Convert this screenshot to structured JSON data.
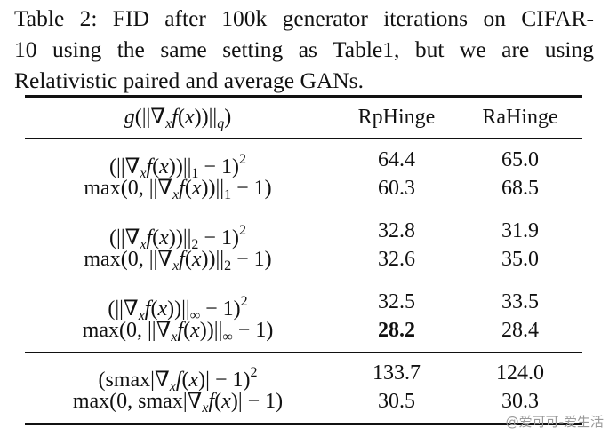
{
  "caption_lines": [
    "Table 2: FID after 100k generator iterations on CIFAR-",
    "10 using the same setting as Table1, but we are using",
    "Relativistic paired and average GANs."
  ],
  "table": {
    "header": {
      "label": [
        {
          "text": "g",
          "style": "i"
        },
        {
          "text": "(||∇",
          "style": "r"
        },
        {
          "text": "x",
          "style": "b"
        },
        {
          "text": "f",
          "style": "i"
        },
        {
          "text": "(",
          "style": "r"
        },
        {
          "text": "x",
          "style": "i"
        },
        {
          "text": "))||",
          "style": "r"
        },
        {
          "text": "q",
          "style": "b"
        },
        {
          "text": ")",
          "style": "r"
        }
      ],
      "columns": [
        "RpHinge",
        "RaHinge"
      ]
    },
    "groups": [
      [
        {
          "label": [
            {
              "text": "(||∇",
              "style": "r"
            },
            {
              "text": "x",
              "style": "b"
            },
            {
              "text": "f",
              "style": "i"
            },
            {
              "text": "(",
              "style": "r"
            },
            {
              "text": "x",
              "style": "i"
            },
            {
              "text": "))||",
              "style": "r"
            },
            {
              "text": "1",
              "style": "br"
            },
            {
              "text": " − 1)",
              "style": "r"
            },
            {
              "text": "2",
              "style": "p"
            }
          ],
          "values": [
            "64.4",
            "65.0"
          ]
        },
        {
          "label": [
            {
              "text": "max(0, ||∇",
              "style": "r"
            },
            {
              "text": "x",
              "style": "b"
            },
            {
              "text": "f",
              "style": "i"
            },
            {
              "text": "(",
              "style": "r"
            },
            {
              "text": "x",
              "style": "i"
            },
            {
              "text": "))||",
              "style": "r"
            },
            {
              "text": "1",
              "style": "br"
            },
            {
              "text": " − 1)",
              "style": "r"
            }
          ],
          "values": [
            "60.3",
            "68.5"
          ]
        }
      ],
      [
        {
          "label": [
            {
              "text": "(||∇",
              "style": "r"
            },
            {
              "text": "x",
              "style": "b"
            },
            {
              "text": "f",
              "style": "i"
            },
            {
              "text": "(",
              "style": "r"
            },
            {
              "text": "x",
              "style": "i"
            },
            {
              "text": "))||",
              "style": "r"
            },
            {
              "text": "2",
              "style": "br"
            },
            {
              "text": " − 1)",
              "style": "r"
            },
            {
              "text": "2",
              "style": "p"
            }
          ],
          "values": [
            "32.8",
            "31.9"
          ]
        },
        {
          "label": [
            {
              "text": "max(0, ||∇",
              "style": "r"
            },
            {
              "text": "x",
              "style": "b"
            },
            {
              "text": "f",
              "style": "i"
            },
            {
              "text": "(",
              "style": "r"
            },
            {
              "text": "x",
              "style": "i"
            },
            {
              "text": "))||",
              "style": "r"
            },
            {
              "text": "2",
              "style": "br"
            },
            {
              "text": " − 1)",
              "style": "r"
            }
          ],
          "values": [
            "32.6",
            "35.0"
          ]
        }
      ],
      [
        {
          "label": [
            {
              "text": "(||∇",
              "style": "r"
            },
            {
              "text": "x",
              "style": "b"
            },
            {
              "text": "f",
              "style": "i"
            },
            {
              "text": "(",
              "style": "r"
            },
            {
              "text": "x",
              "style": "i"
            },
            {
              "text": "))||",
              "style": "r"
            },
            {
              "text": "∞",
              "style": "br"
            },
            {
              "text": " − 1)",
              "style": "r"
            },
            {
              "text": "2",
              "style": "p"
            }
          ],
          "values": [
            "32.5",
            "33.5"
          ]
        },
        {
          "label": [
            {
              "text": "max(0, ||∇",
              "style": "r"
            },
            {
              "text": "x",
              "style": "b"
            },
            {
              "text": "f",
              "style": "i"
            },
            {
              "text": "(",
              "style": "r"
            },
            {
              "text": "x",
              "style": "i"
            },
            {
              "text": "))||",
              "style": "r"
            },
            {
              "text": "∞",
              "style": "br"
            },
            {
              "text": " − 1)",
              "style": "r"
            }
          ],
          "values": [
            "28.2",
            "28.4"
          ],
          "bold_column": 0
        }
      ],
      [
        {
          "label": [
            {
              "text": "(smax|∇",
              "style": "r"
            },
            {
              "text": "x",
              "style": "b"
            },
            {
              "text": "f",
              "style": "i"
            },
            {
              "text": "(",
              "style": "r"
            },
            {
              "text": "x",
              "style": "i"
            },
            {
              "text": ")| − 1)",
              "style": "r"
            },
            {
              "text": "2",
              "style": "p"
            }
          ],
          "values": [
            "133.7",
            "124.0"
          ]
        },
        {
          "label": [
            {
              "text": "max(0, smax|∇",
              "style": "r"
            },
            {
              "text": "x",
              "style": "b"
            },
            {
              "text": "f",
              "style": "i"
            },
            {
              "text": "(",
              "style": "r"
            },
            {
              "text": "x",
              "style": "i"
            },
            {
              "text": ")| − 1)",
              "style": "r"
            }
          ],
          "values": [
            "30.5",
            "30.3"
          ]
        }
      ]
    ]
  },
  "watermark": "@爱可可-爱生活"
}
